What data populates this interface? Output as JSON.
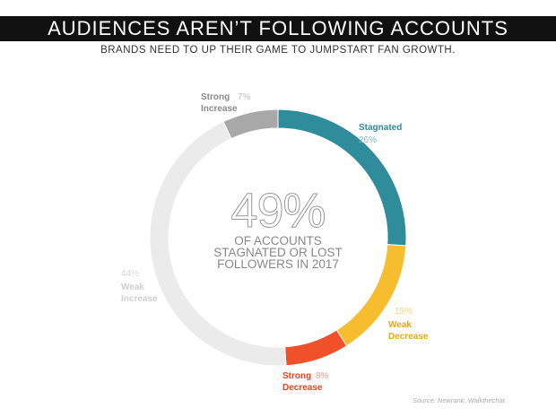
{
  "chart_data": {
    "type": "donut",
    "title": "AUDIENCES AREN’T FOLLOWING ACCOUNTS",
    "subtitle": "BRANDS NEED TO UP THEIR GAME TO JUMPSTART FAN GROWTH.",
    "categories": [
      "Stagnated",
      "Weak Decrease",
      "Strong Decrease",
      "Weak Increase",
      "Strong Increase"
    ],
    "values": [
      26,
      15,
      8,
      44,
      7
    ],
    "value_labels": [
      "26%",
      "15%",
      "8%",
      "44%",
      "7%"
    ],
    "colors": [
      "#2e8c9b",
      "#f6bd2f",
      "#f1512a",
      "#ebebeb",
      "#a8a8a8"
    ],
    "center_value": "49%",
    "center_text": "OF ACCOUNTS STAGNATED OR LOST FOLLOWERS IN 2017",
    "source": "Source: Newrank, Walkthechat"
  }
}
